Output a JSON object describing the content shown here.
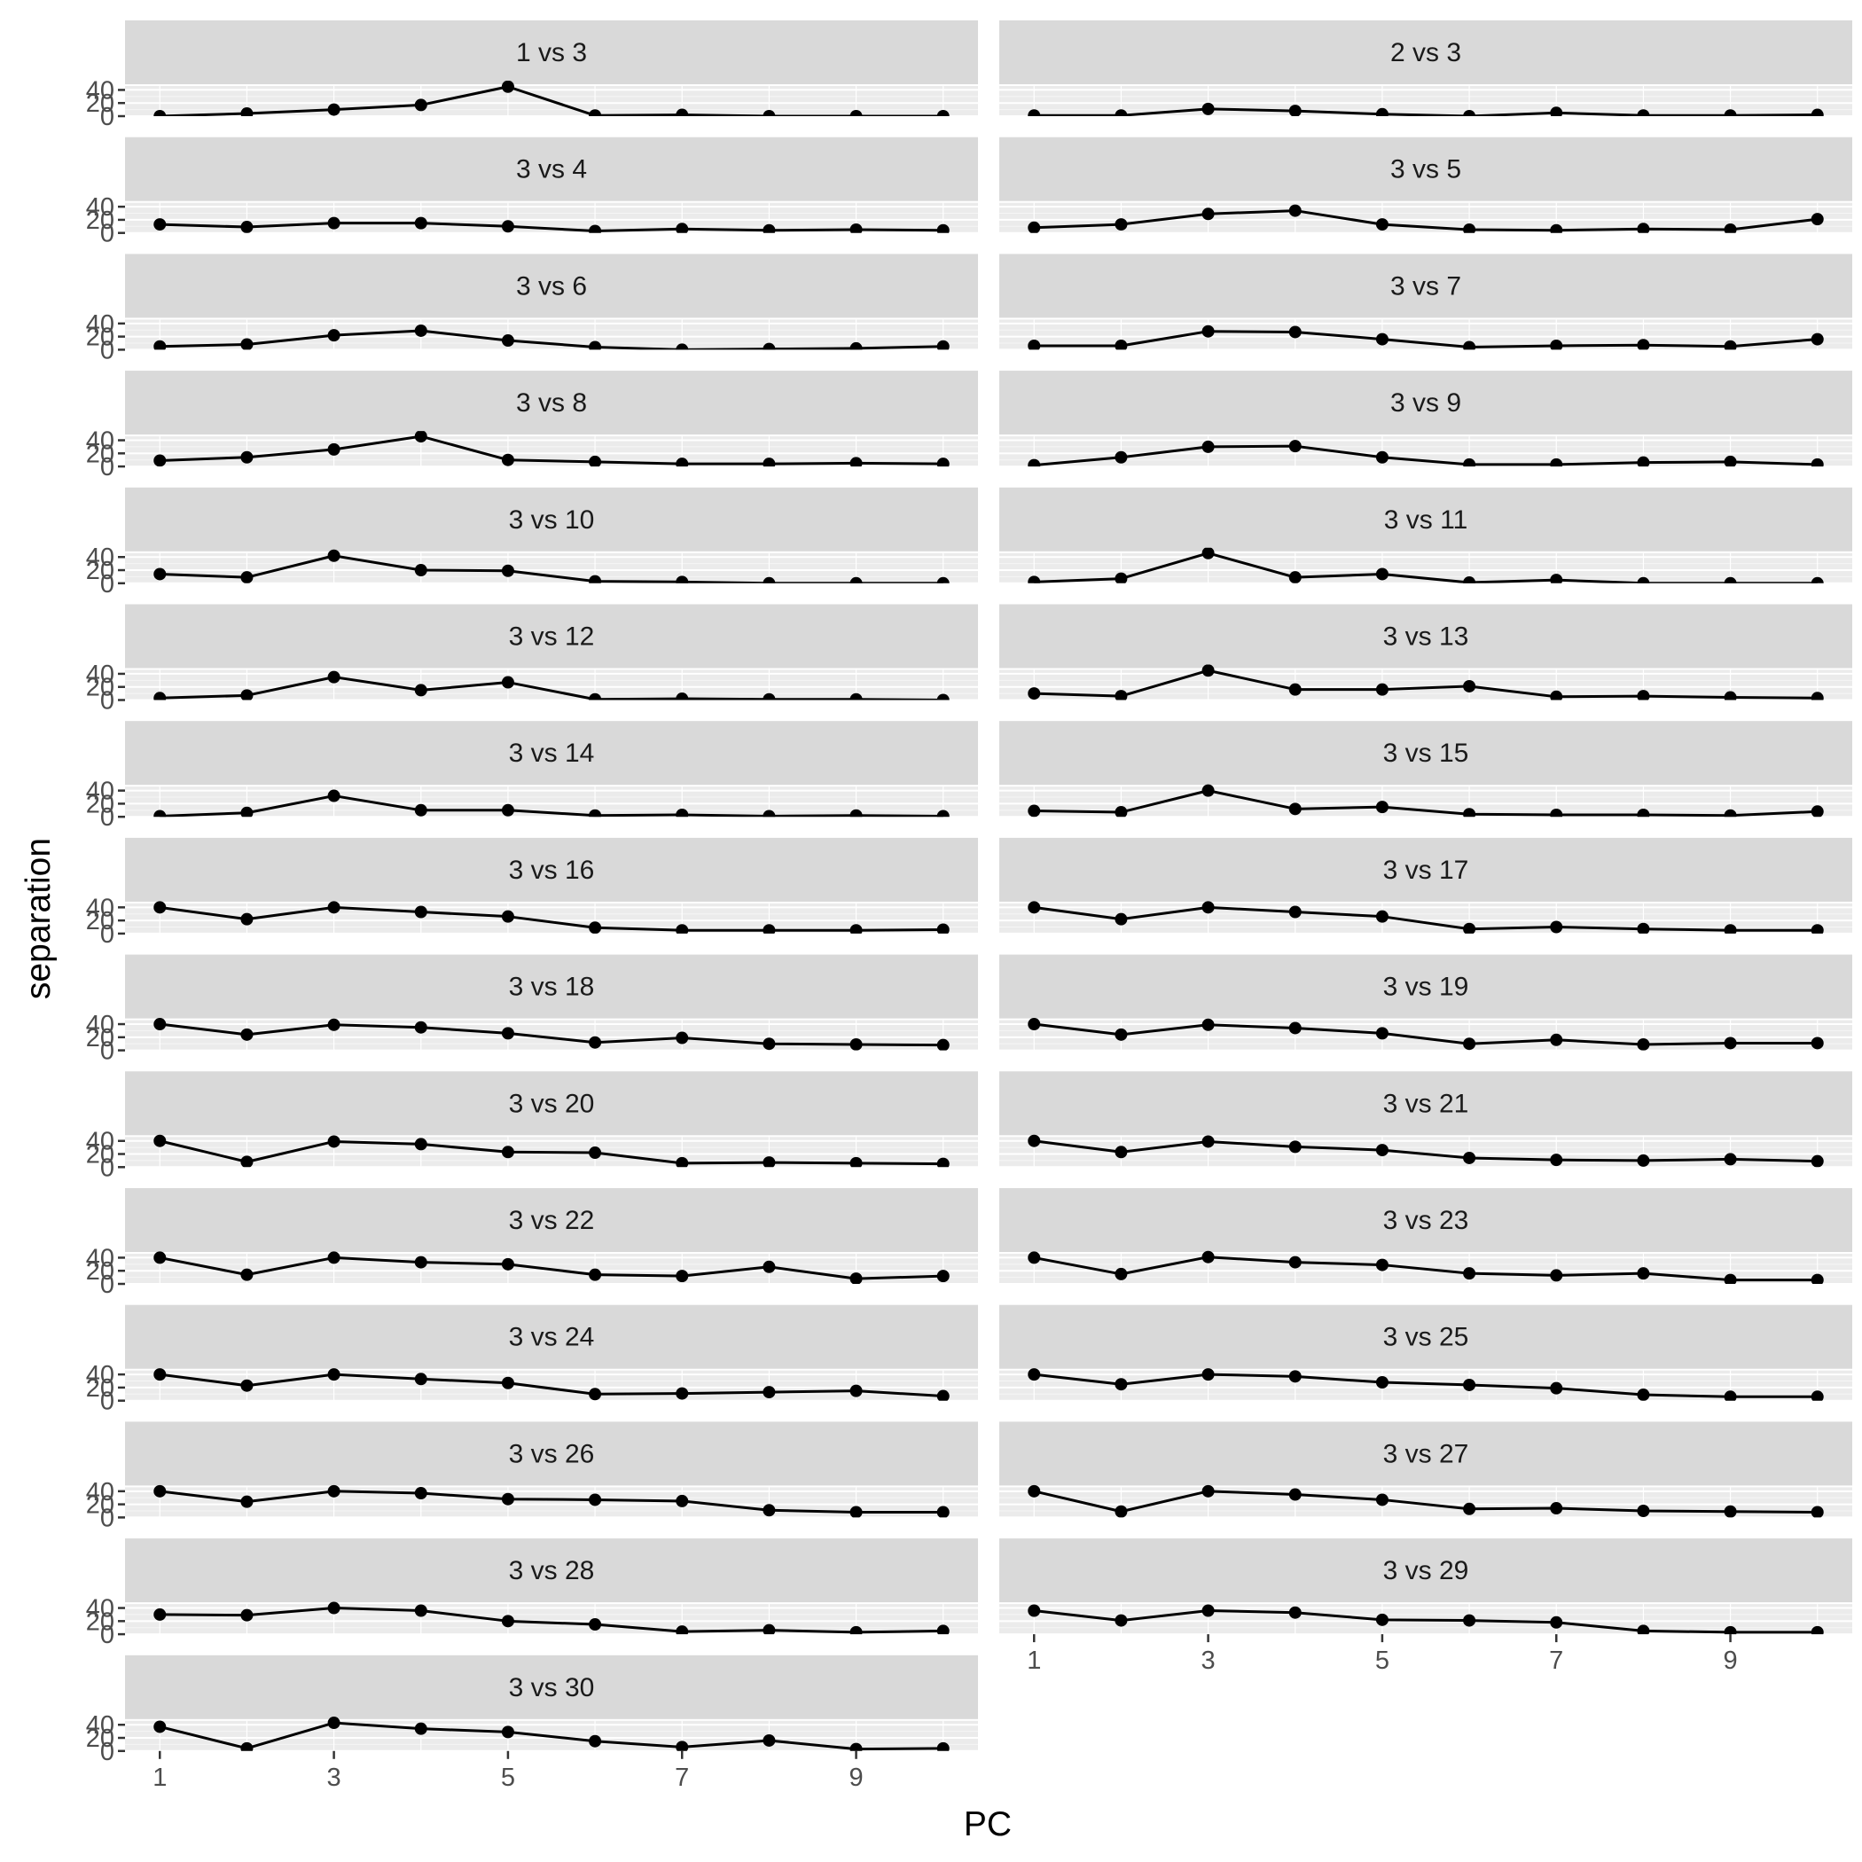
{
  "chart_data": {
    "type": "line",
    "facet_layout": "wrap, 2 columns",
    "xlabel": "PC",
    "ylabel": "separation",
    "x": [
      1,
      2,
      3,
      4,
      5,
      6,
      7,
      8,
      9,
      10
    ],
    "xlim": [
      0.6,
      10.4
    ],
    "ylim": [
      0,
      46
    ],
    "x_ticks": [
      1,
      3,
      5,
      7,
      9
    ],
    "y_ticks": [
      0,
      20,
      40
    ],
    "x_tick_labels": [
      "1",
      "3",
      "5",
      "7",
      "9"
    ],
    "y_tick_labels": [
      "0",
      "20",
      "40"
    ],
    "grid": true,
    "legend": "none",
    "colors": {
      "strip_bg": "#d9d9d9",
      "panel_bg": "#ebebeb",
      "grid_major": "#ffffff",
      "line": "#000000",
      "tick": "#333333"
    },
    "panels": [
      {
        "title": "1 vs 3",
        "values": [
          0,
          4,
          10,
          17,
          45,
          1,
          2,
          0,
          0,
          0
        ]
      },
      {
        "title": "2 vs 3",
        "values": [
          1,
          1,
          11,
          8,
          3,
          0,
          5,
          1,
          1,
          2
        ]
      },
      {
        "title": "3 vs 4",
        "values": [
          13,
          9,
          15,
          15,
          10,
          3,
          6,
          4,
          5,
          4
        ]
      },
      {
        "title": "3 vs 5",
        "values": [
          8,
          13,
          29,
          34,
          13,
          5,
          4,
          6,
          5,
          21
        ]
      },
      {
        "title": "3 vs 6",
        "values": [
          5,
          8,
          22,
          29,
          14,
          4,
          0,
          1,
          2,
          5
        ]
      },
      {
        "title": "3 vs 7",
        "values": [
          6,
          6,
          28,
          27,
          16,
          4,
          6,
          7,
          5,
          16
        ]
      },
      {
        "title": "3 vs 8",
        "values": [
          9,
          14,
          26,
          46,
          10,
          7,
          4,
          4,
          5,
          4
        ]
      },
      {
        "title": "3 vs 9",
        "values": [
          2,
          14,
          30,
          31,
          14,
          3,
          3,
          6,
          7,
          3
        ]
      },
      {
        "title": "3 vs 10",
        "values": [
          14,
          9,
          42,
          20,
          19,
          3,
          2,
          0,
          0,
          0
        ]
      },
      {
        "title": "3 vs 11",
        "values": [
          2,
          7,
          46,
          9,
          14,
          1,
          5,
          0,
          0,
          0
        ]
      },
      {
        "title": "3 vs 12",
        "values": [
          3,
          7,
          35,
          15,
          27,
          1,
          2,
          1,
          1,
          0
        ]
      },
      {
        "title": "3 vs 13",
        "values": [
          10,
          6,
          45,
          16,
          16,
          21,
          5,
          6,
          4,
          3
        ]
      },
      {
        "title": "3 vs 14",
        "values": [
          1,
          6,
          32,
          10,
          10,
          2,
          3,
          1,
          2,
          1
        ]
      },
      {
        "title": "3 vs 15",
        "values": [
          9,
          7,
          40,
          12,
          15,
          4,
          3,
          3,
          2,
          8
        ]
      },
      {
        "title": "3 vs 16",
        "values": [
          40,
          22,
          40,
          33,
          26,
          9,
          5,
          5,
          5,
          6
        ]
      },
      {
        "title": "3 vs 17",
        "values": [
          40,
          22,
          40,
          33,
          26,
          7,
          10,
          7,
          5,
          5
        ]
      },
      {
        "title": "3 vs 18",
        "values": [
          40,
          24,
          39,
          35,
          26,
          12,
          19,
          10,
          9,
          8
        ]
      },
      {
        "title": "3 vs 19",
        "values": [
          40,
          24,
          39,
          34,
          26,
          10,
          16,
          9,
          11,
          11
        ]
      },
      {
        "title": "3 vs 20",
        "values": [
          40,
          8,
          39,
          35,
          23,
          22,
          6,
          7,
          6,
          5
        ]
      },
      {
        "title": "3 vs 21",
        "values": [
          40,
          23,
          39,
          31,
          26,
          14,
          11,
          10,
          12,
          9
        ]
      },
      {
        "title": "3 vs 22",
        "values": [
          40,
          14,
          40,
          33,
          30,
          14,
          12,
          26,
          8,
          12
        ]
      },
      {
        "title": "3 vs 23",
        "values": [
          40,
          15,
          41,
          33,
          29,
          16,
          13,
          16,
          6,
          6
        ]
      },
      {
        "title": "3 vs 24",
        "values": [
          40,
          23,
          40,
          33,
          27,
          10,
          11,
          13,
          15,
          7
        ]
      },
      {
        "title": "3 vs 25",
        "values": [
          40,
          25,
          40,
          37,
          28,
          24,
          19,
          9,
          6,
          6
        ]
      },
      {
        "title": "3 vs 26",
        "values": [
          40,
          24,
          40,
          37,
          28,
          27,
          25,
          11,
          8,
          8
        ]
      },
      {
        "title": "3 vs 27",
        "values": [
          40,
          9,
          40,
          35,
          27,
          13,
          14,
          10,
          9,
          8
        ]
      },
      {
        "title": "3 vs 28",
        "values": [
          30,
          29,
          40,
          36,
          20,
          15,
          4,
          6,
          3,
          5
        ]
      },
      {
        "title": "3 vs 29",
        "values": [
          36,
          21,
          36,
          33,
          22,
          21,
          18,
          5,
          3,
          3
        ]
      },
      {
        "title": "3 vs 30",
        "values": [
          37,
          4,
          43,
          34,
          29,
          15,
          6,
          16,
          3,
          4
        ]
      }
    ]
  }
}
